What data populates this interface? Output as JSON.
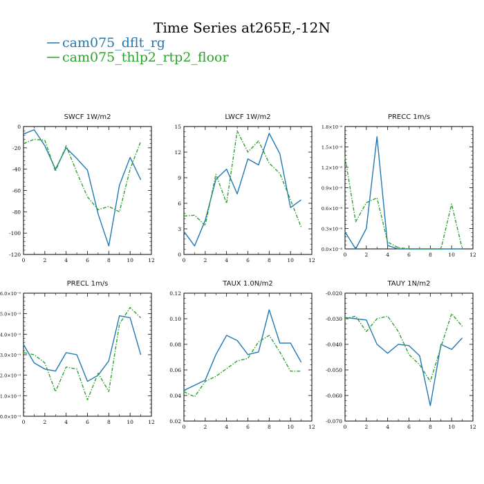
{
  "header": {
    "title": "Time Series at265E,-12N",
    "legend": [
      {
        "name": "cam075_dflt_rg",
        "color": "#1f77b4"
      },
      {
        "name": "cam075_thlp2_rtp2_floor",
        "color": "#2ca02c"
      }
    ]
  },
  "chart_data": [
    {
      "type": "line",
      "title": "SWCF   1W/m2",
      "x": [
        0,
        1,
        2,
        3,
        4,
        5,
        6,
        7,
        8,
        9,
        10,
        11
      ],
      "xlim": [
        0,
        12
      ],
      "xticks": [
        0,
        2,
        4,
        6,
        8,
        10,
        12
      ],
      "ylim": [
        -120,
        0
      ],
      "yticks": [
        -120,
        -100,
        -80,
        -60,
        -40,
        -20,
        0
      ],
      "ytick_labels": [
        "-120",
        "-100",
        "-80",
        "-60",
        "-40",
        "-20",
        "0"
      ],
      "series": [
        {
          "name": "cam075_dflt_rg",
          "values": [
            -7,
            -3,
            -18,
            -40,
            -20,
            -30,
            -41,
            -82,
            -112,
            -55,
            -29,
            -50
          ]
        },
        {
          "name": "cam075_thlp2_rtp2_floor",
          "values": [
            -16,
            -12,
            -13,
            -42,
            -18,
            -43,
            -66,
            -78,
            -75,
            -80,
            -40,
            -14
          ]
        }
      ]
    },
    {
      "type": "line",
      "title": "LWCF   1W/m2",
      "x": [
        0,
        1,
        2,
        3,
        4,
        5,
        6,
        7,
        8,
        9,
        10,
        11
      ],
      "xlim": [
        0,
        12
      ],
      "xticks": [
        0,
        2,
        4,
        6,
        8,
        10,
        12
      ],
      "ylim": [
        0,
        15
      ],
      "yticks": [
        0,
        3,
        6,
        9,
        12,
        15
      ],
      "ytick_labels": [
        "0",
        "3",
        "6",
        "9",
        "12",
        "15"
      ],
      "series": [
        {
          "name": "cam075_dflt_rg",
          "values": [
            2.7,
            1.0,
            4.0,
            8.8,
            10.0,
            7.1,
            11.2,
            10.5,
            14.2,
            11.8,
            5.5,
            6.4
          ]
        },
        {
          "name": "cam075_thlp2_rtp2_floor",
          "values": [
            4.5,
            4.6,
            3.4,
            9.4,
            6.0,
            14.5,
            12.0,
            13.3,
            10.7,
            9.5,
            6.4,
            3.2
          ]
        }
      ]
    },
    {
      "type": "line",
      "title": "PRECC   1m/s",
      "x": [
        0,
        1,
        2,
        3,
        4,
        5,
        6,
        7,
        8,
        9,
        10,
        11
      ],
      "xlim": [
        0,
        12
      ],
      "xticks": [
        0,
        2,
        4,
        6,
        8,
        10,
        12
      ],
      "ylim": [
        0,
        1.8
      ],
      "yticks": [
        0,
        0.3,
        0.6,
        0.9,
        1.2,
        1.5,
        1.8
      ],
      "ytick_labels": [
        "0.0×10⁻⁸",
        "0.3×10⁻⁸",
        "0.6×10⁻⁸",
        "0.9×10⁻⁸",
        "1.2×10⁻⁸",
        "1.5×10⁻⁸",
        "1.8×10⁻⁸"
      ],
      "series": [
        {
          "name": "cam075_dflt_rg",
          "values": [
            0.25,
            0.0,
            0.3,
            1.65,
            0.05,
            0.0,
            0.0,
            0.0,
            0.0,
            0.0,
            0.0,
            0.0
          ]
        },
        {
          "name": "cam075_thlp2_rtp2_floor",
          "values": [
            1.35,
            0.4,
            0.68,
            0.75,
            0.1,
            0.02,
            0.0,
            0.0,
            0.0,
            0.0,
            0.66,
            0.0
          ]
        }
      ]
    },
    {
      "type": "line",
      "title": "PRECL   1m/s",
      "x": [
        0,
        1,
        2,
        3,
        4,
        5,
        6,
        7,
        8,
        9,
        10,
        11
      ],
      "xlim": [
        0,
        12
      ],
      "xticks": [
        0,
        2,
        4,
        6,
        8,
        10,
        12
      ],
      "ylim": [
        0,
        6
      ],
      "yticks": [
        0,
        1,
        2,
        3,
        4,
        5,
        6
      ],
      "ytick_labels": [
        "0.0×10⁻⁹",
        "1.0×10⁻⁹",
        "2.0×10⁻⁹",
        "3.0×10⁻⁹",
        "4.0×10⁻⁹",
        "5.0×10⁻⁹",
        "6.0×10⁻⁹"
      ],
      "series": [
        {
          "name": "cam075_dflt_rg",
          "values": [
            3.5,
            2.6,
            2.3,
            2.2,
            3.1,
            3.0,
            1.7,
            2.0,
            2.7,
            4.9,
            4.8,
            3.0
          ]
        },
        {
          "name": "cam075_thlp2_rtp2_floor",
          "values": [
            3.1,
            3.0,
            2.6,
            1.2,
            2.4,
            2.3,
            0.8,
            2.1,
            1.2,
            4.5,
            5.3,
            4.8
          ]
        }
      ]
    },
    {
      "type": "line",
      "title": "TAUX   1.0N/m2",
      "x": [
        0,
        1,
        2,
        3,
        4,
        5,
        6,
        7,
        8,
        9,
        10,
        11
      ],
      "xlim": [
        0,
        12
      ],
      "xticks": [
        0,
        2,
        4,
        6,
        8,
        10,
        12
      ],
      "ylim": [
        0.02,
        0.12
      ],
      "yticks": [
        0.02,
        0.04,
        0.06,
        0.08,
        0.1,
        0.12
      ],
      "ytick_labels": [
        "0.02",
        "0.04",
        "0.06",
        "0.08",
        "0.10",
        "0.12"
      ],
      "series": [
        {
          "name": "cam075_dflt_rg",
          "values": [
            0.044,
            0.048,
            0.052,
            0.072,
            0.087,
            0.083,
            0.072,
            0.074,
            0.107,
            0.081,
            0.081,
            0.066
          ]
        },
        {
          "name": "cam075_thlp2_rtp2_floor",
          "values": [
            0.043,
            0.039,
            0.051,
            0.055,
            0.061,
            0.067,
            0.069,
            0.082,
            0.087,
            0.074,
            0.059,
            0.059
          ]
        }
      ]
    },
    {
      "type": "line",
      "title": "TAUY   1N/m2",
      "x": [
        0,
        1,
        2,
        3,
        4,
        5,
        6,
        7,
        8,
        9,
        10,
        11
      ],
      "xlim": [
        0,
        12
      ],
      "xticks": [
        0,
        2,
        4,
        6,
        8,
        10,
        12
      ],
      "ylim": [
        -0.07,
        -0.02
      ],
      "yticks": [
        -0.07,
        -0.06,
        -0.05,
        -0.04,
        -0.03,
        -0.02
      ],
      "ytick_labels": [
        "-0.070",
        "-0.060",
        "-0.050",
        "-0.040",
        "-0.030",
        "-0.020"
      ],
      "series": [
        {
          "name": "cam075_dflt_rg",
          "values": [
            -0.0295,
            -0.03,
            -0.0305,
            -0.04,
            -0.0435,
            -0.04,
            -0.0405,
            -0.0445,
            -0.064,
            -0.04,
            -0.042,
            -0.0375
          ]
        },
        {
          "name": "cam075_thlp2_rtp2_floor",
          "values": [
            -0.03,
            -0.029,
            -0.035,
            -0.03,
            -0.029,
            -0.035,
            -0.044,
            -0.048,
            -0.0545,
            -0.041,
            -0.028,
            -0.033
          ]
        }
      ]
    }
  ]
}
